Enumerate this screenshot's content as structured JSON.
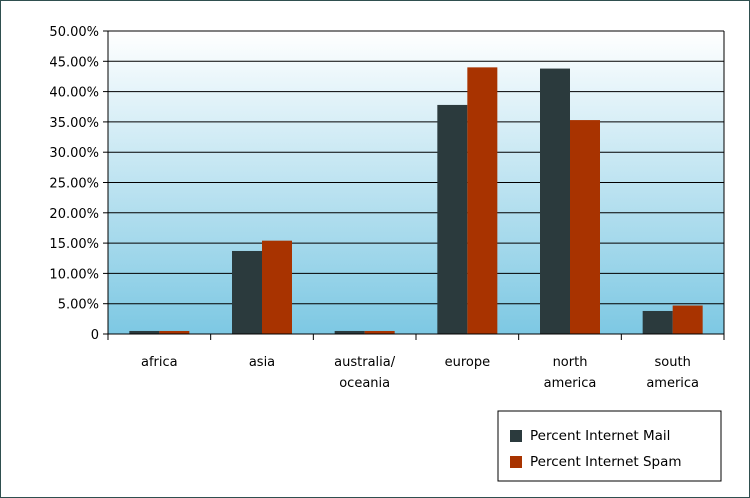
{
  "chart_data": {
    "type": "bar",
    "categories": [
      [
        "africa"
      ],
      [
        "asia"
      ],
      [
        "australia/",
        "oceania"
      ],
      [
        "europe"
      ],
      [
        "north",
        "america"
      ],
      [
        "south",
        "america"
      ]
    ],
    "series": [
      {
        "name": "Percent Internet Mail",
        "color": "#2b3a3d",
        "values": [
          0.5,
          13.7,
          0.5,
          37.8,
          43.8,
          3.8
        ]
      },
      {
        "name": "Percent Internet Spam",
        "color": "#a83300",
        "values": [
          0.5,
          15.4,
          0.5,
          44.0,
          35.3,
          4.7
        ]
      }
    ],
    "ylim": [
      0,
      50
    ],
    "yticks": [
      "0",
      "5.00%",
      "10.00%",
      "15.00%",
      "20.00%",
      "25.00%",
      "30.00%",
      "35.00%",
      "40.00%",
      "45.00%",
      "50.00%"
    ],
    "grid": true,
    "legend_position": "bottom-right",
    "background_gradient": [
      "#ffffff",
      "#7dc8e3"
    ]
  }
}
